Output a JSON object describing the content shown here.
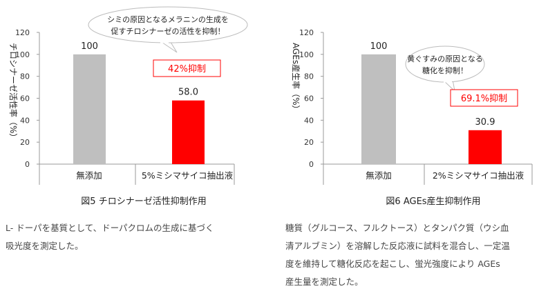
{
  "chart_data": [
    {
      "type": "bar",
      "title": "図5 チロシナーゼ活性抑制作用",
      "ylabel": "チロシナーゼ活性率（%）",
      "categories": [
        "無添加",
        "5%ミシマサイコ抽出液"
      ],
      "values": [
        100,
        58.0
      ],
      "value_labels": [
        "100",
        "58.0"
      ],
      "colors": [
        "#bfbfbf",
        "#ff0000"
      ],
      "ylim": [
        0,
        120
      ],
      "yticks": [
        0,
        20,
        40,
        60,
        80,
        100,
        120
      ],
      "grid": false,
      "annotation": "42%抑制",
      "bubble": [
        "シミの原因となるメラニンの生成を",
        "促すチロシナーゼの活性を抑制！"
      ]
    },
    {
      "type": "bar",
      "title": "図6 AGEs産生抑制作用",
      "ylabel": "AGEs産生率（%）",
      "categories": [
        "無添加",
        "2%ミシマサイコ抽出液"
      ],
      "values": [
        100,
        30.9
      ],
      "value_labels": [
        "100",
        "30.9"
      ],
      "colors": [
        "#bfbfbf",
        "#ff0000"
      ],
      "ylim": [
        0,
        120
      ],
      "yticks": [
        0,
        20,
        40,
        60,
        80,
        100,
        120
      ],
      "grid": false,
      "annotation": "69.1%抑制",
      "bubble": [
        "黄ぐすみの原因となる",
        "糖化を抑制！"
      ]
    }
  ],
  "descriptions": [
    [
      "L- ドーパを基質として、ドーパクロムの生成に基づく",
      "吸光度を測定した。"
    ],
    [
      "糖質（グルコース、フルクトース）とタンパク質（ウシ血",
      "清アルブミン）を溶解した反応液に試料を混合し、一定温",
      "度を維持して糖化反応を起こし、蛍光強度により AGEs",
      "産生量を測定した。"
    ]
  ]
}
